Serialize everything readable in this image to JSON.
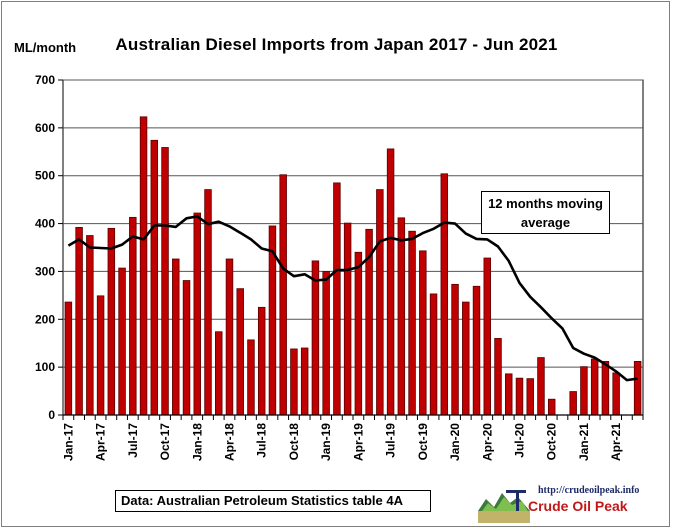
{
  "chart_data": {
    "type": "bar",
    "title": "Australian  Diesel Imports  from Japan 2017 - Jun 2021",
    "ylabel": "ML/month",
    "ylim": [
      0,
      700
    ],
    "yticks": [
      0,
      100,
      200,
      300,
      400,
      500,
      600,
      700
    ],
    "grid": true,
    "x_tick_labels": [
      "Jan-17",
      "Apr-17",
      "Jul-17",
      "Oct-17",
      "Jan-18",
      "Apr-18",
      "Jul-18",
      "Oct-18",
      "Jan-19",
      "Apr-19",
      "Jul-19",
      "Oct-19",
      "Jan-20",
      "Apr-20",
      "Jul-20",
      "Oct-20",
      "Jan-21",
      "Apr-21"
    ],
    "x_tick_every": 3,
    "series": [
      {
        "name": "",
        "kind": "bar",
        "color": "#c00000",
        "values": [
          236,
          392,
          375,
          249,
          390,
          307,
          413,
          623,
          574,
          559,
          326,
          281,
          422,
          471,
          174,
          326,
          264,
          157,
          225,
          395,
          502,
          138,
          140,
          322,
          300,
          485,
          401,
          340,
          388,
          471,
          556,
          412,
          384,
          343,
          253,
          504,
          273,
          236,
          269,
          328,
          160,
          86,
          77,
          76,
          120,
          33,
          0,
          49,
          101,
          117,
          112,
          88,
          0,
          112
        ]
      },
      {
        "name": "12 months moving average",
        "kind": "line",
        "color": "#000000",
        "values": [
          354,
          367,
          350,
          349,
          348,
          356,
          373,
          367,
          396,
          396,
          393,
          411,
          415,
          399,
          404,
          394,
          381,
          367,
          348,
          342,
          306,
          290,
          294,
          281,
          283,
          303,
          303,
          309,
          330,
          363,
          370,
          365,
          368,
          380,
          389,
          402,
          400,
          379,
          368,
          367,
          352,
          322,
          276,
          247,
          225,
          202,
          181,
          140,
          128,
          120,
          106,
          91,
          73,
          76
        ]
      }
    ],
    "annotations": [
      "12 months moving average"
    ],
    "source_note": "Data: Australian Petroleum Statistics table 4A"
  },
  "logo": {
    "url": "http://crudeoilpeak.info",
    "name": "Crude Oil Peak"
  },
  "colors": {
    "bar": "#c00000",
    "bar_edge": "#5a0000",
    "line": "#000000",
    "grid": "#555555"
  }
}
